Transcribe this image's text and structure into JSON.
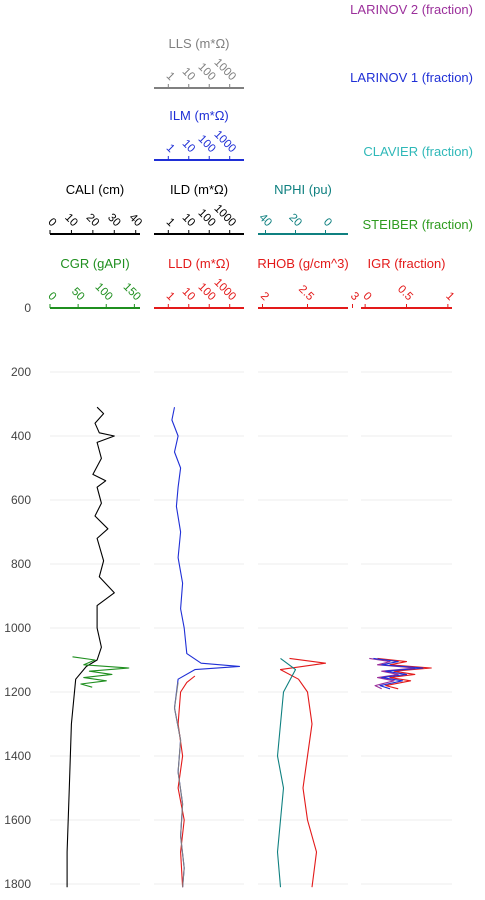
{
  "chart_data": {
    "type": "line",
    "y_axis": {
      "label": "",
      "ticks": [
        0,
        200,
        400,
        600,
        800,
        1000,
        1200,
        1400,
        1600,
        1800
      ],
      "ylim": [
        1810,
        0
      ],
      "reversed": true,
      "grid": true
    },
    "legend_labels": [
      {
        "name": "LARINOV 2 (fraction)",
        "color": "#9b2f9b"
      },
      {
        "name": "LARINOV 1 (fraction)",
        "color": "#1f2fd6"
      },
      {
        "name": "CLAVIER (fraction)",
        "color": "#2fb8b8"
      },
      {
        "name": "STEIBER (fraction)",
        "color": "#2e9b1f"
      }
    ],
    "tracks": [
      {
        "axes": [
          {
            "label": "CALI (cm)",
            "color": "#000000",
            "ticks": [
              "0",
              "10",
              "20",
              "30",
              "40"
            ],
            "tick_values": [
              0,
              10,
              20,
              30,
              40
            ],
            "range": [
              0,
              42
            ],
            "scale": "linear"
          },
          {
            "label": "CGR (gAPI)",
            "color": "#1f8f1f",
            "ticks": [
              "0",
              "50",
              "100",
              "150"
            ],
            "tick_values": [
              0,
              50,
              100,
              150
            ],
            "range": [
              0,
              160
            ],
            "scale": "linear"
          }
        ],
        "series": [
          {
            "name": "CALI",
            "color": "#000000",
            "points": [
              [
                22,
                310
              ],
              [
                25,
                330
              ],
              [
                21,
                360
              ],
              [
                23,
                390
              ],
              [
                30,
                400
              ],
              [
                22,
                420
              ],
              [
                24,
                470
              ],
              [
                20,
                520
              ],
              [
                26,
                540
              ],
              [
                22,
                560
              ],
              [
                24,
                610
              ],
              [
                21,
                650
              ],
              [
                27,
                690
              ],
              [
                22,
                720
              ],
              [
                25,
                790
              ],
              [
                23,
                840
              ],
              [
                30,
                890
              ],
              [
                22,
                930
              ],
              [
                22,
                1000
              ],
              [
                24,
                1060
              ],
              [
                22,
                1100
              ],
              [
                17,
                1120
              ],
              [
                12,
                1160
              ],
              [
                10,
                1300
              ],
              [
                9,
                1500
              ],
              [
                8,
                1700
              ],
              [
                8,
                1810
              ]
            ]
          },
          {
            "name": "CGR",
            "color": "#1f8f1f",
            "points": [
              [
                40,
                1090
              ],
              [
                80,
                1100
              ],
              [
                60,
                1115
              ],
              [
                140,
                1125
              ],
              [
                70,
                1135
              ],
              [
                110,
                1145
              ],
              [
                60,
                1155
              ],
              [
                100,
                1165
              ],
              [
                55,
                1175
              ],
              [
                75,
                1185
              ]
            ]
          }
        ]
      },
      {
        "axes": [
          {
            "label": "LLS (m*Ω)",
            "color": "#808080",
            "ticks": [
              "1",
              "10",
              "100",
              "1000"
            ],
            "tick_values": [
              1,
              10,
              100,
              1000
            ],
            "range": [
              0.2,
              5000
            ],
            "scale": "log"
          },
          {
            "label": "ILM (m*Ω)",
            "color": "#1f2fd6",
            "ticks": [
              "1",
              "10",
              "100",
              "1000"
            ],
            "tick_values": [
              1,
              10,
              100,
              1000
            ],
            "range": [
              0.2,
              5000
            ],
            "scale": "log"
          },
          {
            "label": "ILD (m*Ω)",
            "color": "#000000",
            "ticks": [
              "1",
              "10",
              "100",
              "1000"
            ],
            "tick_values": [
              1,
              10,
              100,
              1000
            ],
            "range": [
              0.2,
              5000
            ],
            "scale": "log"
          },
          {
            "label": "LLD (m*Ω)",
            "color": "#e31a1a",
            "ticks": [
              "1",
              "10",
              "100",
              "1000"
            ],
            "tick_values": [
              1,
              10,
              100,
              1000
            ],
            "range": [
              0.2,
              5000
            ],
            "scale": "log"
          }
        ],
        "series": [
          {
            "name": "ILM",
            "color": "#1f2fd6",
            "points": [
              [
                2,
                310
              ],
              [
                1.5,
                350
              ],
              [
                3,
                400
              ],
              [
                2,
                450
              ],
              [
                4,
                500
              ],
              [
                3,
                560
              ],
              [
                2.5,
                620
              ],
              [
                4,
                700
              ],
              [
                3,
                780
              ],
              [
                5,
                860
              ],
              [
                4,
                940
              ],
              [
                6,
                1000
              ],
              [
                8,
                1080
              ],
              [
                40,
                1110
              ],
              [
                3000,
                1120
              ],
              [
                20,
                1130
              ],
              [
                3,
                1160
              ],
              [
                2,
                1250
              ],
              [
                4,
                1350
              ],
              [
                3,
                1450
              ],
              [
                5,
                1550
              ],
              [
                4,
                1650
              ],
              [
                6,
                1750
              ],
              [
                5,
                1810
              ]
            ]
          },
          {
            "name": "LLD",
            "color": "#e31a1a",
            "points": [
              [
                20,
                1150
              ],
              [
                8,
                1170
              ],
              [
                4,
                1200
              ],
              [
                3,
                1300
              ],
              [
                5,
                1400
              ],
              [
                3,
                1500
              ],
              [
                6,
                1600
              ],
              [
                4,
                1700
              ],
              [
                5,
                1810
              ]
            ]
          },
          {
            "name": "LLS",
            "color": "#808080",
            "points": [
              [
                3,
                1170
              ],
              [
                2,
                1250
              ],
              [
                4,
                1350
              ],
              [
                3,
                1450
              ],
              [
                5,
                1550
              ],
              [
                4,
                1650
              ],
              [
                6,
                1750
              ],
              [
                5,
                1810
              ]
            ]
          }
        ]
      },
      {
        "axes": [
          {
            "label": "NPHI (pu)",
            "color": "#0f8080",
            "ticks": [
              "40",
              "20",
              "0"
            ],
            "tick_values": [
              40,
              20,
              0
            ],
            "range": [
              45,
              -15
            ],
            "scale": "linear"
          },
          {
            "label": "RHOB (g/cm^3)",
            "color": "#e31a1a",
            "ticks": [
              "2",
              "2.5",
              "3"
            ],
            "tick_values": [
              2,
              2.5,
              3
            ],
            "range": [
              1.95,
              2.95
            ],
            "scale": "linear"
          }
        ],
        "series": [
          {
            "name": "RHOB",
            "color": "#e31a1a",
            "points": [
              [
                2.3,
                1095
              ],
              [
                2.7,
                1110
              ],
              [
                2.2,
                1130
              ],
              [
                2.4,
                1160
              ],
              [
                2.5,
                1200
              ],
              [
                2.55,
                1300
              ],
              [
                2.5,
                1400
              ],
              [
                2.45,
                1500
              ],
              [
                2.5,
                1600
              ],
              [
                2.6,
                1700
              ],
              [
                2.55,
                1810
              ]
            ]
          },
          {
            "name": "NPHI",
            "color": "#0f8080",
            "points": [
              [
                30,
                1095
              ],
              [
                20,
                1130
              ],
              [
                28,
                1200
              ],
              [
                30,
                1300
              ],
              [
                32,
                1400
              ],
              [
                28,
                1500
              ],
              [
                30,
                1600
              ],
              [
                32,
                1700
              ],
              [
                30,
                1810
              ]
            ]
          }
        ]
      },
      {
        "axes": [
          {
            "label": "IGR (fraction)",
            "color": "#e31a1a",
            "ticks": [
              "0",
              "0.5",
              "1"
            ],
            "tick_values": [
              0,
              0.5,
              1
            ],
            "range": [
              -0.05,
              1.05
            ],
            "scale": "linear"
          }
        ],
        "series": [
          {
            "name": "IGR",
            "color": "#e31a1a",
            "points": [
              [
                0.15,
                1095
              ],
              [
                0.5,
                1105
              ],
              [
                0.3,
                1115
              ],
              [
                0.8,
                1125
              ],
              [
                0.35,
                1135
              ],
              [
                0.6,
                1145
              ],
              [
                0.3,
                1155
              ],
              [
                0.55,
                1165
              ],
              [
                0.25,
                1180
              ],
              [
                0.4,
                1190
              ]
            ]
          },
          {
            "name": "LARINOV 2",
            "color": "#9b2f9b",
            "points": [
              [
                0.05,
                1095
              ],
              [
                0.3,
                1105
              ],
              [
                0.15,
                1115
              ],
              [
                0.6,
                1125
              ],
              [
                0.2,
                1135
              ],
              [
                0.4,
                1145
              ],
              [
                0.15,
                1155
              ],
              [
                0.35,
                1165
              ],
              [
                0.12,
                1180
              ],
              [
                0.2,
                1190
              ]
            ]
          },
          {
            "name": "LARINOV 1",
            "color": "#1f2fd6",
            "points": [
              [
                0.1,
                1095
              ],
              [
                0.4,
                1105
              ],
              [
                0.2,
                1115
              ],
              [
                0.7,
                1125
              ],
              [
                0.25,
                1135
              ],
              [
                0.5,
                1145
              ],
              [
                0.2,
                1155
              ],
              [
                0.45,
                1165
              ],
              [
                0.18,
                1180
              ],
              [
                0.3,
                1190
              ]
            ]
          }
        ]
      }
    ]
  }
}
